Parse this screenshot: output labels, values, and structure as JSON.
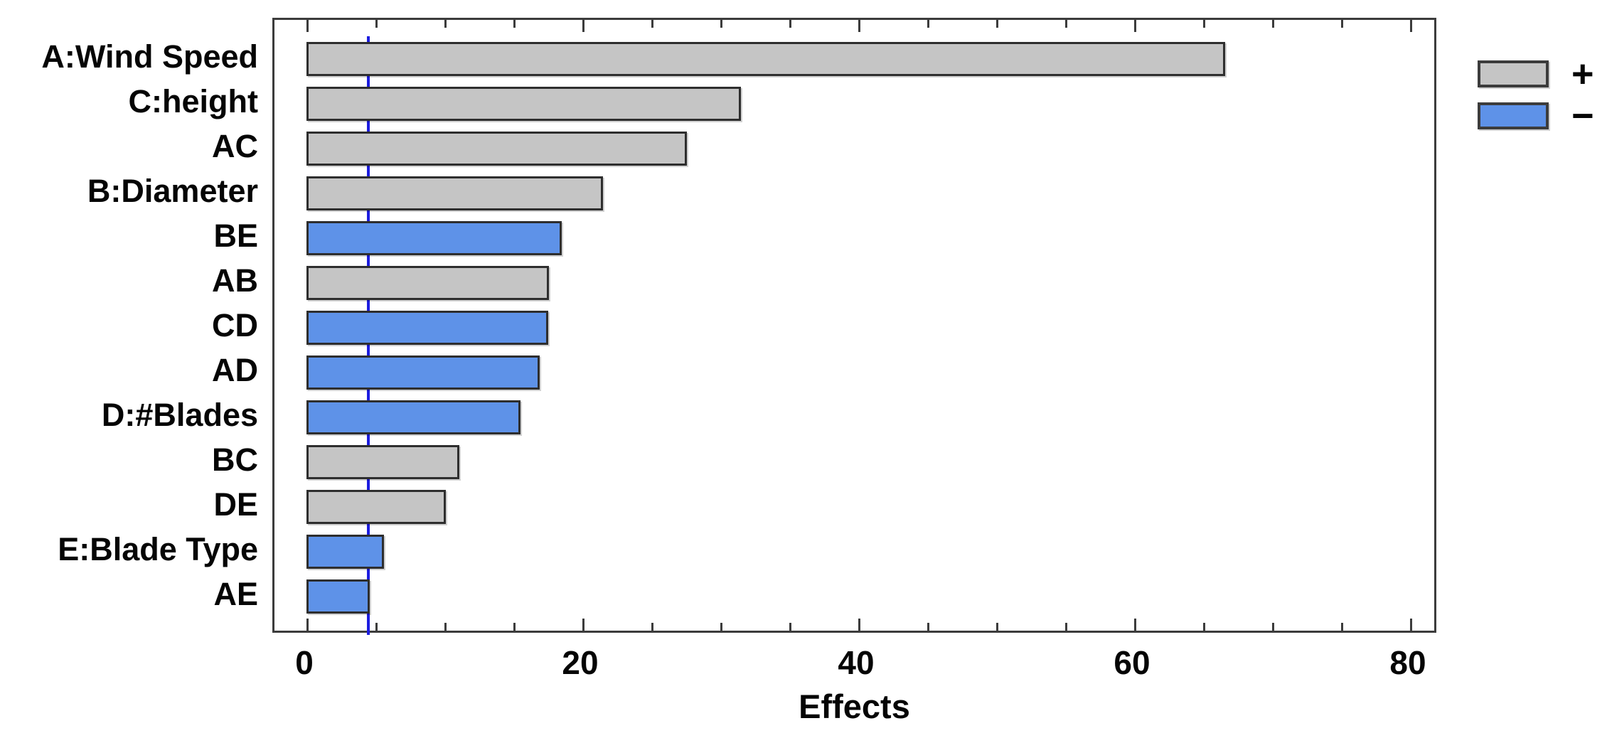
{
  "chart_data": {
    "type": "bar",
    "orientation": "horizontal",
    "title": "",
    "xlabel": "Effects",
    "ylabel": "",
    "categories": [
      "A:Wind Speed",
      "C:height",
      "AC",
      "B:Diameter",
      "BE",
      "AB",
      "CD",
      "AD",
      "D:#Blades",
      "BC",
      "DE",
      "E:Blade Type",
      "AE"
    ],
    "values": [
      66.6,
      31.5,
      27.6,
      21.5,
      18.5,
      17.6,
      17.5,
      16.9,
      15.5,
      11.1,
      10.1,
      5.6,
      4.6
    ],
    "signs": [
      "+",
      "+",
      "+",
      "+",
      "-",
      "+",
      "-",
      "-",
      "-",
      "+",
      "+",
      "-",
      "-"
    ],
    "xlim": [
      -2.3,
      82
    ],
    "x_ticks_major": [
      0,
      20,
      40,
      60,
      80
    ],
    "x_tick_labels": [
      "0",
      "20",
      "40",
      "60",
      "80"
    ],
    "x_minor_tick_step": 5,
    "reference_line_x": 4.4,
    "grid": false,
    "legend": {
      "position": "top-right",
      "items": [
        {
          "label": "+",
          "color": "#c5c5c5"
        },
        {
          "label": "−",
          "color": "#5e92e8"
        }
      ]
    },
    "colors": {
      "positive_bar": "#c5c5c5",
      "negative_bar": "#5e92e8",
      "bar_border": "#2e2e2e",
      "axis": "#3c3c3c",
      "reference_line": "#1c1ce0",
      "text": "#050505",
      "background": "#ffffff"
    }
  }
}
